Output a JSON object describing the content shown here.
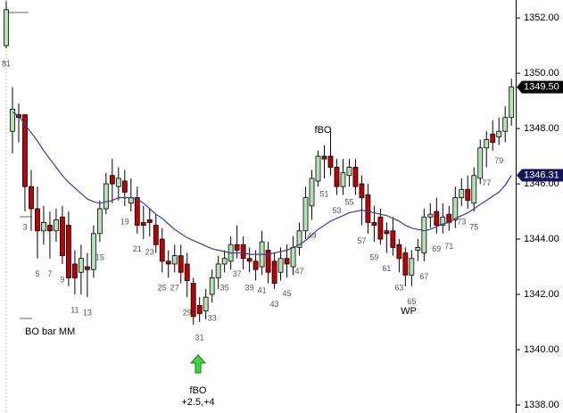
{
  "chart_data": {
    "type": "candlestick",
    "categories": [
      "81",
      null,
      null,
      "3",
      null,
      "5",
      null,
      "7",
      null,
      "9",
      null,
      "11",
      null,
      "13",
      null,
      "15",
      null,
      null,
      null,
      "19",
      null,
      "21",
      null,
      "23",
      null,
      "25",
      null,
      "27",
      null,
      "29",
      null,
      "31",
      null,
      "33",
      null,
      "35",
      null,
      "37",
      null,
      "39",
      null,
      "41",
      null,
      "43",
      null,
      "45",
      null,
      "47",
      null,
      "49",
      null,
      "51",
      null,
      "53",
      null,
      "55",
      null,
      "57",
      null,
      "59",
      null,
      "61",
      null,
      "63",
      null,
      "65",
      null,
      "67",
      null,
      "69",
      null,
      "71",
      null,
      "73",
      null,
      "75",
      null,
      "77",
      null,
      "79",
      null,
      null
    ],
    "open": [
      1351.0,
      1347.9,
      1348.5,
      1348.5,
      1345.9,
      1345.1,
      1344.3,
      1344.5,
      1344.3,
      1344.8,
      1344.5,
      1343.1,
      1342.8,
      1343.0,
      1342.9,
      1344.2,
      1345.1,
      1346.3,
      1345.9,
      1346.1,
      1345.3,
      1345.5,
      1344.6,
      1344.7,
      1344.5,
      1344.0,
      1343.2,
      1343.1,
      1343.4,
      1343.1,
      1342.4,
      1341.6,
      1341.4,
      1342.0,
      1342.6,
      1343.1,
      1343.2,
      1343.8,
      1343.8,
      1343.3,
      1343.2,
      1343.0,
      1343.6,
      1343.2,
      1342.8,
      1343.3,
      1343.0,
      1343.7,
      1344.3,
      1345.2,
      1346.1,
      1347.0,
      1347.0,
      1346.6,
      1345.9,
      1346.3,
      1346.6,
      1346.0,
      1345.6,
      1344.6,
      1344.8,
      1344.3,
      1344.3,
      1343.8,
      1343.5,
      1342.7,
      1343.6,
      1343.5,
      1344.8,
      1345.0,
      1344.5,
      1344.9,
      1344.7,
      1345.5,
      1345.8,
      1345.3,
      1346.2,
      1347.3,
      1347.8,
      1347.7,
      1347.9,
      1348.4
    ],
    "high": [
      1352.6,
      1349.5,
      1348.9,
      1348.5,
      1346.5,
      1345.9,
      1345.2,
      1345.0,
      1345.1,
      1345.2,
      1345.0,
      1343.6,
      1343.8,
      1343.5,
      1344.5,
      1345.4,
      1346.4,
      1346.9,
      1346.6,
      1346.5,
      1346.2,
      1345.9,
      1345.2,
      1345.1,
      1344.9,
      1344.4,
      1343.6,
      1343.8,
      1343.8,
      1343.5,
      1342.6,
      1341.9,
      1342.2,
      1342.9,
      1343.4,
      1343.6,
      1344.1,
      1344.5,
      1344.1,
      1343.7,
      1343.6,
      1344.3,
      1343.9,
      1343.5,
      1343.7,
      1343.8,
      1344.1,
      1344.6,
      1345.9,
      1346.5,
      1347.2,
      1347.4,
      1348.0,
      1346.9,
      1346.9,
      1346.9,
      1346.9,
      1346.3,
      1346.0,
      1345.2,
      1345.1,
      1344.6,
      1344.8,
      1344.0,
      1343.7,
      1343.6,
      1344.0,
      1345.1,
      1345.3,
      1345.5,
      1345.3,
      1345.2,
      1345.9,
      1346.2,
      1346.3,
      1346.6,
      1347.6,
      1347.9,
      1348.3,
      1348.4,
      1348.8,
      1349.8
    ],
    "low": [
      1350.9,
      1347.1,
      1347.5,
      1345.0,
      1344.3,
      1343.3,
      1343.8,
      1343.3,
      1343.9,
      1343.1,
      1342.3,
      1342.0,
      1342.0,
      1341.9,
      1342.6,
      1343.9,
      1344.9,
      1345.3,
      1345.4,
      1345.2,
      1345.0,
      1344.2,
      1344.0,
      1344.1,
      1343.5,
      1342.8,
      1342.6,
      1342.8,
      1342.4,
      1341.9,
      1340.9,
      1341.0,
      1341.1,
      1341.7,
      1342.2,
      1342.8,
      1342.9,
      1343.3,
      1342.9,
      1342.8,
      1342.5,
      1342.7,
      1342.4,
      1342.2,
      1342.5,
      1342.6,
      1342.7,
      1343.4,
      1344.0,
      1344.7,
      1345.9,
      1346.2,
      1346.3,
      1345.6,
      1345.6,
      1345.9,
      1345.6,
      1344.5,
      1344.2,
      1343.9,
      1343.8,
      1343.5,
      1343.4,
      1342.8,
      1342.3,
      1342.3,
      1343.2,
      1343.2,
      1344.4,
      1344.2,
      1344.2,
      1344.3,
      1344.4,
      1345.2,
      1345.1,
      1345.0,
      1346.0,
      1346.6,
      1347.2,
      1347.4,
      1347.5,
      1348.1
    ],
    "close": [
      1352.3,
      1348.7,
      1348.4,
      1345.9,
      1345.1,
      1344.3,
      1344.6,
      1344.3,
      1344.7,
      1343.4,
      1342.6,
      1342.6,
      1343.3,
      1342.9,
      1344.2,
      1345.1,
      1346.0,
      1346.0,
      1346.2,
      1345.7,
      1345.5,
      1344.5,
      1344.5,
      1344.6,
      1343.8,
      1343.2,
      1343.1,
      1343.4,
      1342.8,
      1342.5,
      1341.2,
      1341.3,
      1341.9,
      1342.6,
      1343.1,
      1343.3,
      1343.8,
      1343.6,
      1343.3,
      1343.2,
      1342.9,
      1343.9,
      1342.8,
      1342.4,
      1343.3,
      1343.1,
      1343.7,
      1344.3,
      1345.5,
      1346.2,
      1347.0,
      1346.9,
      1346.6,
      1345.9,
      1346.4,
      1346.6,
      1345.9,
      1345.5,
      1344.6,
      1344.5,
      1344.0,
      1344.2,
      1343.7,
      1343.3,
      1342.7,
      1343.3,
      1343.7,
      1344.8,
      1344.9,
      1344.5,
      1344.8,
      1344.6,
      1345.5,
      1345.8,
      1345.4,
      1346.3,
      1347.3,
      1347.6,
      1347.5,
      1347.9,
      1348.4,
      1349.5
    ],
    "up_color": "#b3e3b3",
    "down_color": "#c00000",
    "ema": {
      "color": "#3a3aa8",
      "values": [
        null,
        1348.6,
        1348.45,
        1348.15,
        1347.85,
        1347.55,
        1347.2,
        1346.9,
        1346.6,
        1346.3,
        1346.05,
        1345.85,
        1345.65,
        1345.45,
        1345.35,
        1345.3,
        1345.35,
        1345.4,
        1345.5,
        1345.5,
        1345.5,
        1345.45,
        1345.3,
        1345.1,
        1344.9,
        1344.75,
        1344.55,
        1344.35,
        1344.2,
        1344.05,
        1343.95,
        1343.85,
        1343.75,
        1343.65,
        1343.6,
        1343.55,
        1343.5,
        1343.5,
        1343.5,
        1343.45,
        1343.45,
        1343.45,
        1343.45,
        1343.5,
        1343.55,
        1343.6,
        1343.7,
        1343.8,
        1343.95,
        1344.15,
        1344.35,
        1344.5,
        1344.65,
        1344.75,
        1344.85,
        1344.95,
        1345.0,
        1345.05,
        1345.0,
        1344.95,
        1344.9,
        1344.85,
        1344.75,
        1344.65,
        1344.5,
        1344.4,
        1344.35,
        1344.3,
        1344.35,
        1344.45,
        1344.55,
        1344.6,
        1344.75,
        1344.85,
        1344.95,
        1345.1,
        1345.25,
        1345.4,
        1345.55,
        1345.7,
        1345.95,
        1346.31
      ]
    },
    "price_flags": [
      {
        "value": 1349.5,
        "label": "1349.50",
        "color": "#000000"
      },
      {
        "value": 1346.31,
        "label": "1346.31",
        "color": "#14145a"
      }
    ],
    "ylim": [
      1337.71,
      1352.65
    ],
    "yticks": [
      {
        "value": 1338,
        "label": "1338.00"
      },
      {
        "value": 1340,
        "label": "1340.00"
      },
      {
        "value": 1342,
        "label": "1342.00"
      },
      {
        "value": 1344,
        "label": "1344.00"
      },
      {
        "value": 1346,
        "label": "1346.00"
      },
      {
        "value": 1348,
        "label": "1348.00"
      },
      {
        "value": 1350,
        "label": "1350.00"
      },
      {
        "value": 1352,
        "label": "1352.00"
      }
    ],
    "annotations": [
      "BO bar MM",
      "fBO",
      "WP",
      "fBO",
      "+2.5,+4"
    ]
  }
}
